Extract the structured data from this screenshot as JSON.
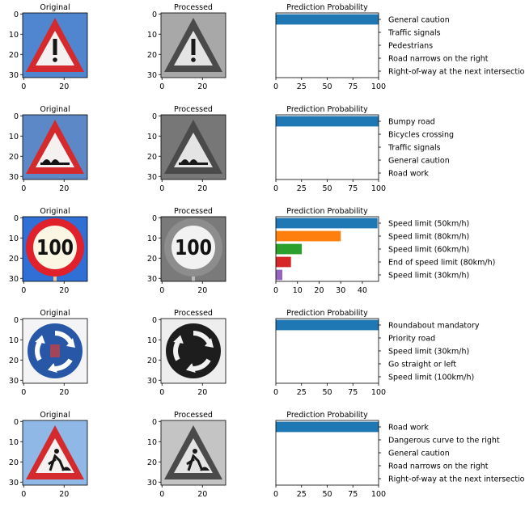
{
  "column_titles": {
    "original": "Original",
    "processed": "Processed",
    "prediction": "Prediction Probability"
  },
  "image_axis": {
    "xticks": [
      "0",
      "20"
    ],
    "yticks": [
      "0",
      "10",
      "20",
      "30"
    ]
  },
  "colors": {
    "bar_palette": [
      "#1f77b4",
      "#ff7f0e",
      "#2ca02c",
      "#d62728",
      "#9467bd"
    ]
  },
  "rows": [
    {
      "sign": "general-caution-sign",
      "processed_sign": "general-caution-sign-grayscale"
    },
    {
      "sign": "bumpy-road-sign",
      "processed_sign": "bumpy-road-sign-grayscale"
    },
    {
      "sign": "speed-limit-100-sign",
      "sign_text": "100",
      "processed_sign": "speed-limit-100-sign-grayscale"
    },
    {
      "sign": "roundabout-mandatory-sign",
      "processed_sign": "roundabout-mandatory-sign-grayscale"
    },
    {
      "sign": "road-work-sign",
      "processed_sign": "road-work-sign-grayscale"
    }
  ],
  "chart_data": [
    {
      "type": "bar",
      "orientation": "horizontal",
      "title": "Prediction Probability",
      "categories": [
        "General caution",
        "Traffic signals",
        "Pedestrians",
        "Road narrows on the right",
        "Right-of-way at the next intersection"
      ],
      "values": [
        100,
        0,
        0,
        0,
        0
      ],
      "xlim": [
        0,
        100
      ],
      "xticks": [
        0,
        25,
        50,
        75,
        100
      ],
      "ytick_position": "right"
    },
    {
      "type": "bar",
      "orientation": "horizontal",
      "title": "Prediction Probability",
      "categories": [
        "Bumpy road",
        "Bicycles crossing",
        "Traffic signals",
        "General caution",
        "Road work"
      ],
      "values": [
        100,
        0,
        0,
        0,
        0
      ],
      "xlim": [
        0,
        100
      ],
      "xticks": [
        0,
        25,
        50,
        75,
        100
      ],
      "ytick_position": "right"
    },
    {
      "type": "bar",
      "orientation": "horizontal",
      "title": "Prediction Probability",
      "categories": [
        "Speed limit (50km/h)",
        "Speed limit (80km/h)",
        "Speed limit (60km/h)",
        "End of speed limit (80km/h)",
        "Speed limit (30km/h)"
      ],
      "values": [
        47,
        30,
        12,
        7,
        3
      ],
      "xlim": [
        0,
        47.5
      ],
      "xticks": [
        0,
        10,
        20,
        30,
        40
      ],
      "ytick_position": "right"
    },
    {
      "type": "bar",
      "orientation": "horizontal",
      "title": "Prediction Probability",
      "categories": [
        "Roundabout mandatory",
        "Priority road",
        "Speed limit (30km/h)",
        "Go straight or left",
        "Speed limit (100km/h)"
      ],
      "values": [
        100,
        0,
        0,
        0,
        0
      ],
      "xlim": [
        0,
        100
      ],
      "xticks": [
        0,
        25,
        50,
        75,
        100
      ],
      "ytick_position": "right"
    },
    {
      "type": "bar",
      "orientation": "horizontal",
      "title": "Prediction Probability",
      "categories": [
        "Road work",
        "Dangerous curve to the right",
        "General caution",
        "Road narrows on the right",
        "Right-of-way at the next intersection"
      ],
      "values": [
        100,
        0,
        0,
        0,
        0
      ],
      "xlim": [
        0,
        100
      ],
      "xticks": [
        0,
        25,
        50,
        75,
        100
      ],
      "ytick_position": "right"
    }
  ]
}
